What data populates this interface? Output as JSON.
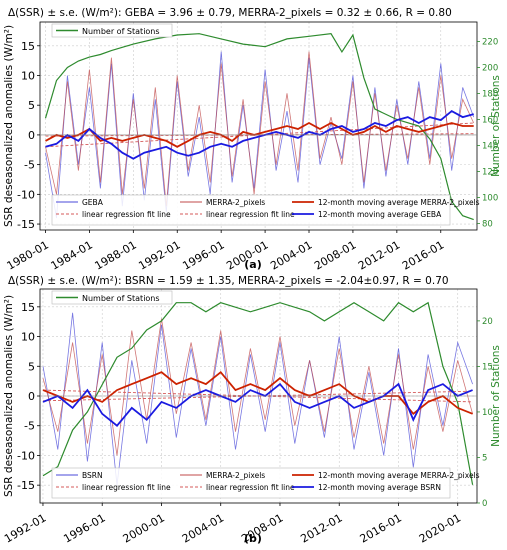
{
  "panels": [
    {
      "caption": "(a)",
      "chart_data": {
        "type": "line",
        "title": "Δ(SSR) ± s.e. (W/m²):  GEBA = 3.96 ± 0.79,  MERRA-2_pixels = 0.32 ± 0.66,  R = 0.80",
        "ylabel": "SSR deseasonalized anomalies (W/m²)",
        "y2label": "Number of Stations",
        "ylim": [
          -16,
          19
        ],
        "y2lim": [
          75,
          235
        ],
        "xlim": [
          1979.5,
          2019.3
        ],
        "xticks": [
          "1980-01",
          "1984-01",
          "1988-01",
          "1992-01",
          "1996-01",
          "2000-01",
          "2004-01",
          "2008-01",
          "2012-01",
          "2016-01"
        ],
        "yticks": [
          "-15",
          "-10",
          "-5",
          "0",
          "5",
          "10",
          "15"
        ],
        "y2ticks": [
          "80",
          "100",
          "120",
          "140",
          "160",
          "180",
          "200",
          "220"
        ],
        "grid": true,
        "legend_placement": "lower-center",
        "legend": [
          "GEBA",
          "linear regression fit line",
          "MERRA-2_pixels",
          "linear regression fit line",
          "12-month moving average MERRA-2_pixels",
          "12-month moving average GEBA"
        ],
        "stations_legend": "Number of Stations",
        "colors": {
          "obs": "#4a4ad8",
          "obs_ma": "#1a1ae0",
          "model": "#c04848",
          "model_ma": "#cc2200",
          "stations": "#2e8b2e",
          "fit": "#d45a5a"
        },
        "series": [
          {
            "name": "Number of Stations",
            "axis": "right",
            "x": [
              1980,
              1981,
              1982,
              1983,
              1984,
              1985,
              1986,
              1988,
              1990,
              1992,
              1994,
              1996,
              1998,
              2000,
              2002,
              2004,
              2006,
              2007,
              2008,
              2009,
              2010,
              2012,
              2014,
              2015,
              2016,
              2017,
              2018,
              2019
            ],
            "values": [
              161,
              190,
              200,
              205,
              208,
              210,
              213,
              218,
              222,
              225,
              226,
              222,
              218,
              216,
              222,
              224,
              226,
              212,
              225,
              192,
              168,
              160,
              155,
              145,
              130,
              97,
              86,
              83
            ]
          },
          {
            "name": "12-month moving average GEBA",
            "axis": "left",
            "x": [
              1980,
              1981,
              1982,
              1983,
              1984,
              1985,
              1986,
              1987,
              1988,
              1989,
              1990,
              1991,
              1992,
              1993,
              1994,
              1995,
              1996,
              1997,
              1998,
              1999,
              2000,
              2001,
              2002,
              2003,
              2004,
              2005,
              2006,
              2007,
              2008,
              2009,
              2010,
              2011,
              2012,
              2013,
              2014,
              2015,
              2016,
              2017,
              2018,
              2019
            ],
            "values": [
              -2,
              -1.5,
              0,
              -1,
              1,
              -0.5,
              -1.5,
              -3,
              -4,
              -3,
              -2.5,
              -2,
              -3,
              -3.5,
              -3,
              -2,
              -1.5,
              -2,
              -1,
              -0.5,
              0,
              0.5,
              0,
              -0.5,
              0.5,
              0,
              1,
              1.5,
              0.5,
              1,
              2,
              1.5,
              2.5,
              3,
              2,
              3,
              2.5,
              4,
              3,
              3.5
            ]
          },
          {
            "name": "12-month moving average MERRA-2_pixels",
            "axis": "left",
            "x": [
              1980,
              1981,
              1982,
              1983,
              1984,
              1985,
              1986,
              1987,
              1988,
              1989,
              1990,
              1991,
              1992,
              1993,
              1994,
              1995,
              1996,
              1997,
              1998,
              1999,
              2000,
              2001,
              2002,
              2003,
              2004,
              2005,
              2006,
              2007,
              2008,
              2009,
              2010,
              2011,
              2012,
              2013,
              2014,
              2015,
              2016,
              2017,
              2018,
              2019
            ],
            "values": [
              -1,
              0,
              -0.5,
              0,
              1,
              -1,
              -0.5,
              -1,
              -0.5,
              0,
              -0.5,
              -1,
              -2,
              -1,
              0,
              0.5,
              0,
              -1,
              0.5,
              0,
              0.5,
              1,
              1.5,
              1,
              2,
              1,
              2,
              1,
              0,
              0.5,
              1.5,
              0.5,
              1.5,
              1,
              0.5,
              1,
              1.5,
              2,
              1.5,
              1.5
            ]
          },
          {
            "name": "GEBA",
            "axis": "left",
            "x": [
              1980,
              1981,
              1982,
              1983,
              1984,
              1985,
              1986,
              1987,
              1988,
              1989,
              1990,
              1991,
              1992,
              1993,
              1994,
              1995,
              1996,
              1997,
              1998,
              1999,
              2000,
              2001,
              2002,
              2003,
              2004,
              2005,
              2006,
              2007,
              2008,
              2009,
              2010,
              2011,
              2012,
              2013,
              2014,
              2015,
              2016,
              2017,
              2018,
              2019
            ],
            "values": [
              -3,
              -14,
              10,
              -5,
              8,
              -9,
              12,
              -12,
              7,
              -11,
              6,
              -13,
              9,
              -7,
              3,
              -10,
              14,
              -8,
              5,
              -9,
              11,
              -6,
              4,
              -8,
              13,
              -5,
              2,
              -4,
              10,
              -9,
              8,
              -7,
              6,
              -5,
              9,
              -4,
              12,
              -6,
              8,
              3
            ]
          },
          {
            "name": "MERRA-2_pixels",
            "axis": "left",
            "x": [
              1980,
              1981,
              1982,
              1983,
              1984,
              1985,
              1986,
              1987,
              1988,
              1989,
              1990,
              1991,
              1992,
              1993,
              1994,
              1995,
              1996,
              1997,
              1998,
              1999,
              2000,
              2001,
              2002,
              2003,
              2004,
              2005,
              2006,
              2007,
              2008,
              2009,
              2010,
              2011,
              2012,
              2013,
              2014,
              2015,
              2016,
              2017,
              2018,
              2019
            ],
            "values": [
              -2,
              -10,
              9,
              -6,
              11,
              -8,
              13,
              -10,
              6,
              -9,
              8,
              -12,
              10,
              -6,
              5,
              -8,
              12,
              -7,
              6,
              -10,
              9,
              -5,
              7,
              -6,
              14,
              -4,
              3,
              -5,
              9,
              -8,
              7,
              -6,
              5,
              -4,
              8,
              -5,
              10,
              -4,
              6,
              2
            ]
          },
          {
            "name": "linear regression fit line (GEBA)",
            "axis": "left",
            "x": [
              1980,
              2019
            ],
            "values": [
              -2.0,
              2.0
            ]
          },
          {
            "name": "linear regression fit line (MERRA-2_pixels)",
            "axis": "left",
            "x": [
              1980,
              2019
            ],
            "values": [
              -0.2,
              0.2
            ]
          }
        ]
      }
    },
    {
      "caption": "(b)",
      "chart_data": {
        "type": "line",
        "title": "Δ(SSR) ± s.e. (W/m²):  BSRN = 1.59 ± 1.35,  MERRA-2_pixels = -2.04±0.97,  R = 0.70",
        "ylabel": "SSR deseasonalized anomalies (W/m²)",
        "y2label": "Number of Stations",
        "ylim": [
          -18,
          18
        ],
        "y2lim": [
          0,
          23.5
        ],
        "xlim": [
          1991.8,
          2021.3
        ],
        "xticks": [
          "1992-01",
          "1996-01",
          "2000-01",
          "2004-01",
          "2008-01",
          "2012-01",
          "2016-01",
          "2020-01"
        ],
        "yticks": [
          "-15",
          "-10",
          "-5",
          "0",
          "5",
          "10",
          "15"
        ],
        "y2ticks": [
          "0",
          "5",
          "10",
          "15",
          "20"
        ],
        "grid": true,
        "legend_placement": "lower-center",
        "legend": [
          "BSRN",
          "linear regression fit line",
          "MERRA-2_pixels",
          "linear regression fit line",
          "12-month moving average MERRA-2_pixels",
          "12-month moving average BSRN"
        ],
        "stations_legend": "Number of Stations",
        "colors": {
          "obs": "#4a4ad8",
          "obs_ma": "#1a1ae0",
          "model": "#c04848",
          "model_ma": "#cc2200",
          "stations": "#2e8b2e",
          "fit": "#d45a5a"
        },
        "series": [
          {
            "name": "Number of Stations",
            "axis": "right",
            "x": [
              1992,
              1993,
              1994,
              1995,
              1996,
              1997,
              1998,
              1999,
              2000,
              2001,
              2002,
              2003,
              2004,
              2006,
              2008,
              2010,
              2011,
              2012,
              2013,
              2014,
              2015,
              2016,
              2017,
              2018,
              2019,
              2020,
              2021
            ],
            "values": [
              3,
              4,
              8,
              10,
              13,
              16,
              17,
              19,
              20,
              22,
              22,
              21,
              22,
              21,
              22,
              21,
              20,
              21,
              22,
              21,
              20,
              22,
              21,
              22,
              15,
              11,
              2
            ]
          },
          {
            "name": "12-month moving average BSRN",
            "axis": "left",
            "x": [
              1992,
              1993,
              1994,
              1995,
              1996,
              1997,
              1998,
              1999,
              2000,
              2001,
              2002,
              2003,
              2004,
              2005,
              2006,
              2007,
              2008,
              2009,
              2010,
              2011,
              2012,
              2013,
              2014,
              2015,
              2016,
              2017,
              2018,
              2019,
              2020,
              2021
            ],
            "values": [
              -1,
              0,
              -2,
              1,
              -3,
              -5,
              -2,
              -4,
              -1,
              -2,
              0,
              1,
              0,
              -1,
              1,
              0,
              2,
              -1,
              -2,
              -1,
              0,
              -2,
              -1,
              0,
              2,
              -4,
              1,
              2,
              0,
              1
            ]
          },
          {
            "name": "12-month moving average MERRA-2_pixels",
            "axis": "left",
            "x": [
              1992,
              1993,
              1994,
              1995,
              1996,
              1997,
              1998,
              1999,
              2000,
              2001,
              2002,
              2003,
              2004,
              2005,
              2006,
              2007,
              2008,
              2009,
              2010,
              2011,
              2012,
              2013,
              2014,
              2015,
              2016,
              2017,
              2018,
              2019,
              2020,
              2021
            ],
            "values": [
              1,
              0,
              -1,
              0,
              -1,
              1,
              2,
              3,
              4,
              2,
              3,
              2,
              4,
              1,
              2,
              1,
              3,
              1,
              0,
              1,
              2,
              0,
              -1,
              0,
              0,
              -3,
              -1,
              0,
              -2,
              -3
            ]
          },
          {
            "name": "BSRN",
            "axis": "left",
            "x": [
              1992,
              1993,
              1994,
              1995,
              1996,
              1997,
              1998,
              1999,
              2000,
              2001,
              2002,
              2003,
              2004,
              2005,
              2006,
              2007,
              2008,
              2009,
              2010,
              2011,
              2012,
              2013,
              2014,
              2015,
              2016,
              2017,
              2018,
              2019,
              2020,
              2021
            ],
            "values": [
              5,
              -9,
              14,
              -11,
              9,
              -15,
              6,
              -8,
              12,
              -7,
              8,
              -5,
              10,
              -9,
              7,
              -6,
              9,
              -8,
              6,
              -7,
              10,
              -9,
              4,
              -10,
              8,
              -12,
              7,
              -5,
              9,
              2
            ]
          },
          {
            "name": "MERRA-2_pixels",
            "axis": "left",
            "x": [
              1992,
              1993,
              1994,
              1995,
              1996,
              1997,
              1998,
              1999,
              2000,
              2001,
              2002,
              2003,
              2004,
              2005,
              2006,
              2007,
              2008,
              2009,
              2010,
              2011,
              2012,
              2013,
              2014,
              2015,
              2016,
              2017,
              2018,
              2019,
              2020,
              2021
            ],
            "values": [
              3,
              -6,
              9,
              -8,
              7,
              -10,
              11,
              -4,
              13,
              -3,
              9,
              -4,
              11,
              -6,
              8,
              -4,
              10,
              -5,
              6,
              -6,
              8,
              -7,
              5,
              -8,
              7,
              -9,
              5,
              -6,
              6,
              -3
            ]
          },
          {
            "name": "linear regression fit line (BSRN)",
            "axis": "left",
            "x": [
              1992,
              2021
            ],
            "values": [
              -0.8,
              0.8
            ]
          },
          {
            "name": "linear regression fit line (MERRA-2_pixels)",
            "axis": "left",
            "x": [
              1992,
              2021
            ],
            "values": [
              1.0,
              -1.0
            ]
          }
        ]
      }
    }
  ]
}
